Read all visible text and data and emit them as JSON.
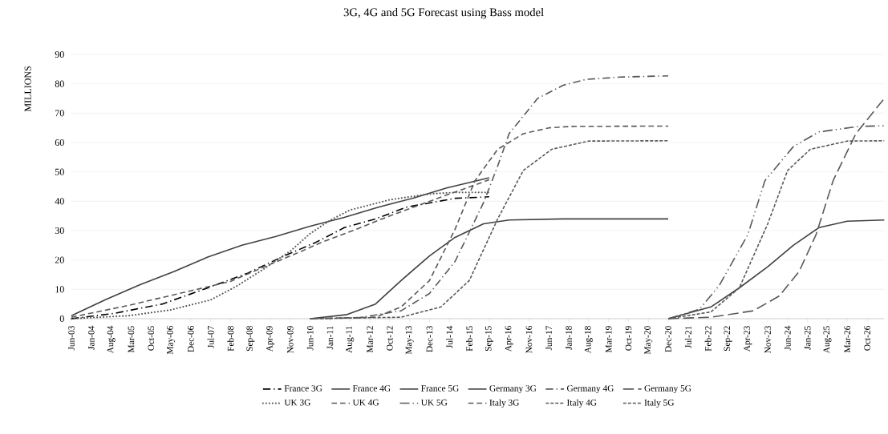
{
  "chart_data": {
    "type": "line",
    "title": "3G, 4G and 5G Forecast using Bass model",
    "ylabel": "MILLIONS",
    "xlim": [
      "2003-06",
      "2027-04"
    ],
    "ylim": [
      0,
      90
    ],
    "yticks": [
      0,
      10,
      20,
      30,
      40,
      50,
      60,
      70,
      80,
      90
    ],
    "xticks": [
      {
        "value": "2003-06",
        "label": "Jun-03"
      },
      {
        "value": "2004-01",
        "label": "Jan-04"
      },
      {
        "value": "2004-08",
        "label": "Aug-04"
      },
      {
        "value": "2005-03",
        "label": "Mar-05"
      },
      {
        "value": "2005-10",
        "label": "Oct-05"
      },
      {
        "value": "2006-05",
        "label": "May-06"
      },
      {
        "value": "2006-12",
        "label": "Dec-06"
      },
      {
        "value": "2007-07",
        "label": "Jul-07"
      },
      {
        "value": "2008-02",
        "label": "Feb-08"
      },
      {
        "value": "2008-09",
        "label": "Sep-08"
      },
      {
        "value": "2009-04",
        "label": "Apr-09"
      },
      {
        "value": "2009-11",
        "label": "Nov-09"
      },
      {
        "value": "2010-06",
        "label": "Jun-10"
      },
      {
        "value": "2011-01",
        "label": "Jan-11"
      },
      {
        "value": "2011-08",
        "label": "Aug-11"
      },
      {
        "value": "2012-03",
        "label": "Mar-12"
      },
      {
        "value": "2012-10",
        "label": "Oct-12"
      },
      {
        "value": "2013-05",
        "label": "May-13"
      },
      {
        "value": "2013-12",
        "label": "Dec-13"
      },
      {
        "value": "2014-07",
        "label": "Jul-14"
      },
      {
        "value": "2015-02",
        "label": "Feb-15"
      },
      {
        "value": "2015-09",
        "label": "Sep-15"
      },
      {
        "value": "2016-04",
        "label": "Apr-16"
      },
      {
        "value": "2016-11",
        "label": "Nov-16"
      },
      {
        "value": "2017-06",
        "label": "Jun-17"
      },
      {
        "value": "2018-01",
        "label": "Jan-18"
      },
      {
        "value": "2018-08",
        "label": "Aug-18"
      },
      {
        "value": "2019-03",
        "label": "Mar-19"
      },
      {
        "value": "2019-10",
        "label": "Oct-19"
      },
      {
        "value": "2020-05",
        "label": "May-20"
      },
      {
        "value": "2020-12",
        "label": "Dec-20"
      },
      {
        "value": "2021-07",
        "label": "Jul-21"
      },
      {
        "value": "2022-02",
        "label": "Feb-22"
      },
      {
        "value": "2022-09",
        "label": "Sep-22"
      },
      {
        "value": "2023-04",
        "label": "Apr-23"
      },
      {
        "value": "2023-11",
        "label": "Nov-23"
      },
      {
        "value": "2024-06",
        "label": "Jun-24"
      },
      {
        "value": "2025-01",
        "label": "Jan-25"
      },
      {
        "value": "2025-08",
        "label": "Aug-25"
      },
      {
        "value": "2026-03",
        "label": "Mar-26"
      },
      {
        "value": "2026-10",
        "label": "Oct-26"
      }
    ],
    "grid": "y",
    "legend": "bottom",
    "series": [
      {
        "name": "France 3G",
        "color": "#000000",
        "line_style": "dashdot",
        "x": [
          "2003-06",
          "2004-09",
          "2006-02",
          "2007-06",
          "2008-08",
          "2009-08",
          "2010-08",
          "2011-06",
          "2012-05",
          "2013-04",
          "2014-09",
          "2015-09"
        ],
        "values": [
          0,
          1.8,
          5,
          10.5,
          15.5,
          21,
          26,
          31,
          34,
          38,
          41,
          41.5
        ]
      },
      {
        "name": "France 4G",
        "color": "#404040",
        "line_style": "solid",
        "x": [
          "2010-06",
          "2011-07",
          "2012-05",
          "2013-02",
          "2013-12",
          "2014-09",
          "2015-07",
          "2016-04",
          "2017-11",
          "2020-12"
        ],
        "values": [
          0,
          1.4,
          5,
          13,
          21.4,
          27.7,
          32.3,
          33.6,
          34,
          34
        ]
      },
      {
        "name": "France 5G",
        "color": "#404040",
        "line_style": "solid",
        "x": [
          "2020-12",
          "2022-03",
          "2023-01",
          "2023-11",
          "2024-08",
          "2025-05",
          "2026-03",
          "2027-04"
        ],
        "values": [
          0,
          4,
          10.5,
          17.7,
          25,
          31,
          33.2,
          33.6
        ]
      },
      {
        "name": "Germany 3G",
        "color": "#404040",
        "line_style": "solid",
        "x": [
          "2003-06",
          "2004-06",
          "2005-06",
          "2006-06",
          "2007-06",
          "2008-06",
          "2009-06",
          "2010-06",
          "2011-06",
          "2012-06",
          "2013-06",
          "2014-06",
          "2015-09"
        ],
        "values": [
          1,
          6.5,
          11.5,
          16,
          21,
          25,
          28,
          31.5,
          34.5,
          38,
          41,
          44.5,
          48
        ]
      },
      {
        "name": "Germany 4G",
        "color": "#595959",
        "line_style": "dashdot",
        "x": [
          "2010-06",
          "2011-11",
          "2013-02",
          "2013-12",
          "2014-09",
          "2015-07",
          "2015-12",
          "2016-04",
          "2017-02",
          "2017-11",
          "2018-07",
          "2019-07",
          "2020-12"
        ],
        "values": [
          0,
          0.3,
          2.7,
          8.6,
          19.5,
          39.5,
          52,
          63,
          75,
          79.5,
          81.5,
          82.3,
          82.7
        ]
      },
      {
        "name": "Germany 5G",
        "color": "#595959",
        "line_style": "longdash",
        "x": [
          "2020-12",
          "2022-03",
          "2023-06",
          "2024-03",
          "2024-10",
          "2025-04",
          "2025-10",
          "2026-06",
          "2027-04"
        ],
        "values": [
          0,
          0.5,
          2.7,
          7.7,
          16,
          28.6,
          47,
          63,
          75
        ]
      },
      {
        "name": "UK 3G",
        "color": "#595959",
        "line_style": "dotted",
        "x": [
          "2003-06",
          "2005-02",
          "2006-05",
          "2007-07",
          "2008-04",
          "2009-01",
          "2009-11",
          "2010-06",
          "2011-01",
          "2011-08",
          "2012-10",
          "2013-12",
          "2014-09",
          "2015-09"
        ],
        "values": [
          0,
          1,
          3,
          6.4,
          11,
          16.5,
          23,
          29,
          33.5,
          37,
          40.5,
          42.5,
          43,
          43
        ]
      },
      {
        "name": "UK 4G",
        "color": "#595959",
        "line_style": "dashed",
        "x": [
          "2010-06",
          "2012-05",
          "2013-02",
          "2013-12",
          "2014-09",
          "2015-04",
          "2015-12",
          "2016-09",
          "2017-06",
          "2018-02",
          "2020-12"
        ],
        "values": [
          0,
          0.5,
          4,
          13,
          30.5,
          47,
          57.7,
          63,
          65,
          65.5,
          65.6
        ]
      },
      {
        "name": "UK 5G",
        "color": "#595959",
        "line_style": "dashdotdot",
        "x": [
          "2020-12",
          "2021-11",
          "2022-06",
          "2023-04",
          "2023-10",
          "2024-08",
          "2025-05",
          "2026-07",
          "2027-04"
        ],
        "values": [
          0,
          3.2,
          11.4,
          28.6,
          47,
          58.6,
          63.6,
          65.5,
          65.7
        ]
      },
      {
        "name": "Italy 3G",
        "color": "#595959",
        "line_style": "dashed",
        "x": [
          "2003-06",
          "2005-02",
          "2006-12",
          "2008-02",
          "2009-01",
          "2010-03",
          "2010-10",
          "2011-09",
          "2012-10",
          "2014-04",
          "2015-09"
        ],
        "values": [
          0.5,
          4.5,
          9.5,
          12.7,
          17.3,
          23,
          26,
          30,
          35,
          41.4,
          47.3
        ]
      },
      {
        "name": "Italy 4G",
        "color": "#595959",
        "line_style": "shortdash",
        "x": [
          "2010-06",
          "2013-02",
          "2014-04",
          "2015-02",
          "2015-12",
          "2016-09",
          "2017-07",
          "2018-08",
          "2020-12"
        ],
        "values": [
          0,
          0.5,
          4,
          13,
          34,
          50.5,
          57.7,
          60.5,
          60.6
        ]
      },
      {
        "name": "Italy 5G",
        "color": "#595959",
        "line_style": "shortdash",
        "x": [
          "2020-12",
          "2022-03",
          "2023-01",
          "2023-11",
          "2024-06",
          "2025-02",
          "2026-03",
          "2027-04"
        ],
        "values": [
          0,
          2.3,
          10.5,
          32.3,
          50.5,
          57.7,
          60.5,
          60.6
        ]
      }
    ]
  }
}
